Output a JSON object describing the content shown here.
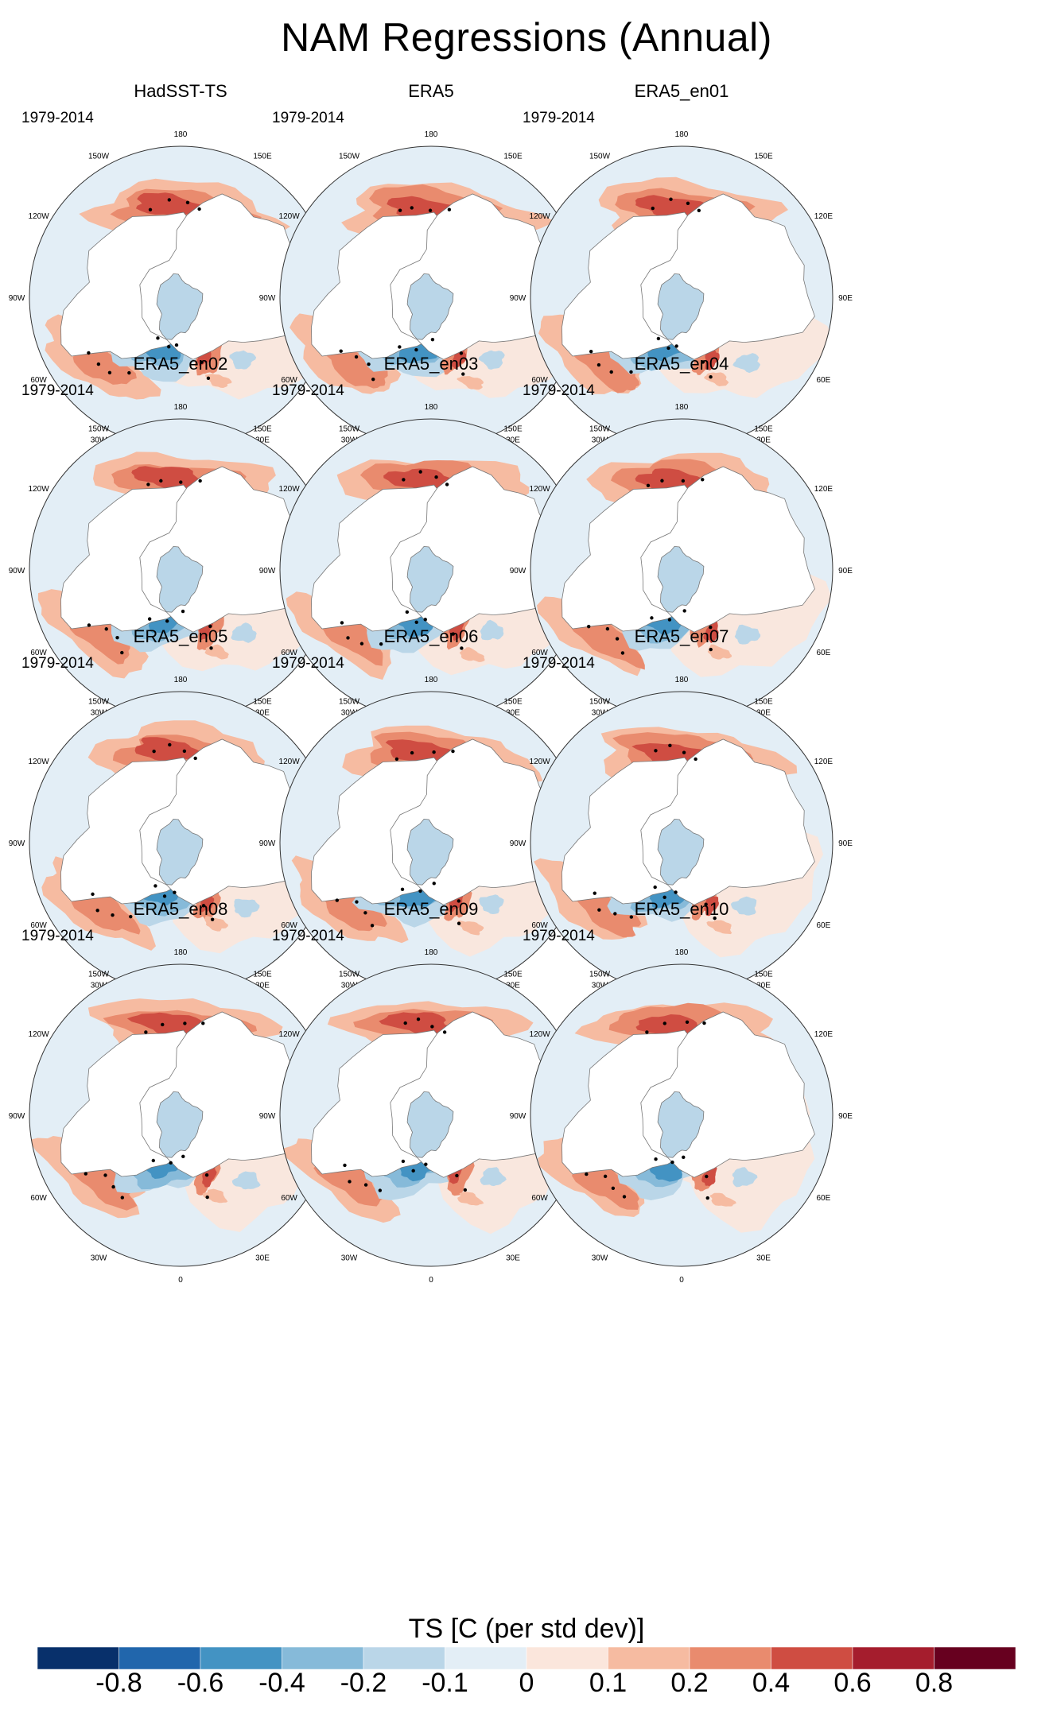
{
  "title": "NAM Regressions (Annual)",
  "chart_data": {
    "type": "polar-stereographic map panels (filled contour, stippled significance)",
    "region": "Northern Hemisphere, 20N–90N",
    "variable": "TS",
    "units": "C (per std dev)",
    "colorbar_title": "TS [C (per std dev)]",
    "colorbar_levels": [
      "-0.8",
      "-0.6",
      "-0.4",
      "-0.2",
      "-0.1",
      "0",
      "0.1",
      "0.2",
      "0.4",
      "0.6",
      "0.8"
    ],
    "colorbar_colors": [
      "#08306b",
      "#2166ac",
      "#4393c3",
      "#86bad9",
      "#bad6e8",
      "#e3eef6",
      "#fbe6dc",
      "#f6bba1",
      "#e98b6e",
      "#cf4d42",
      "#a51d2d",
      "#67001f"
    ],
    "longitude_labels": [
      "180",
      "150E",
      "120E",
      "90E",
      "60E",
      "30E",
      "0",
      "30W",
      "60W",
      "90W",
      "120W",
      "150W"
    ],
    "panels": [
      {
        "name": "HadSST-TS",
        "period": "1979-2014"
      },
      {
        "name": "ERA5",
        "period": "1979-2014"
      },
      {
        "name": "ERA5_en01",
        "period": "1979-2014"
      },
      {
        "name": "ERA5_en02",
        "period": "1979-2014"
      },
      {
        "name": "ERA5_en03",
        "period": "1979-2014"
      },
      {
        "name": "ERA5_en04",
        "period": "1979-2014"
      },
      {
        "name": "ERA5_en05",
        "period": "1979-2014"
      },
      {
        "name": "ERA5_en06",
        "period": "1979-2014"
      },
      {
        "name": "ERA5_en07",
        "period": "1979-2014"
      },
      {
        "name": "ERA5_en08",
        "period": "1979-2014"
      },
      {
        "name": "ERA5_en09",
        "period": "1979-2014"
      },
      {
        "name": "ERA5_en10",
        "period": "1979-2014"
      }
    ]
  }
}
